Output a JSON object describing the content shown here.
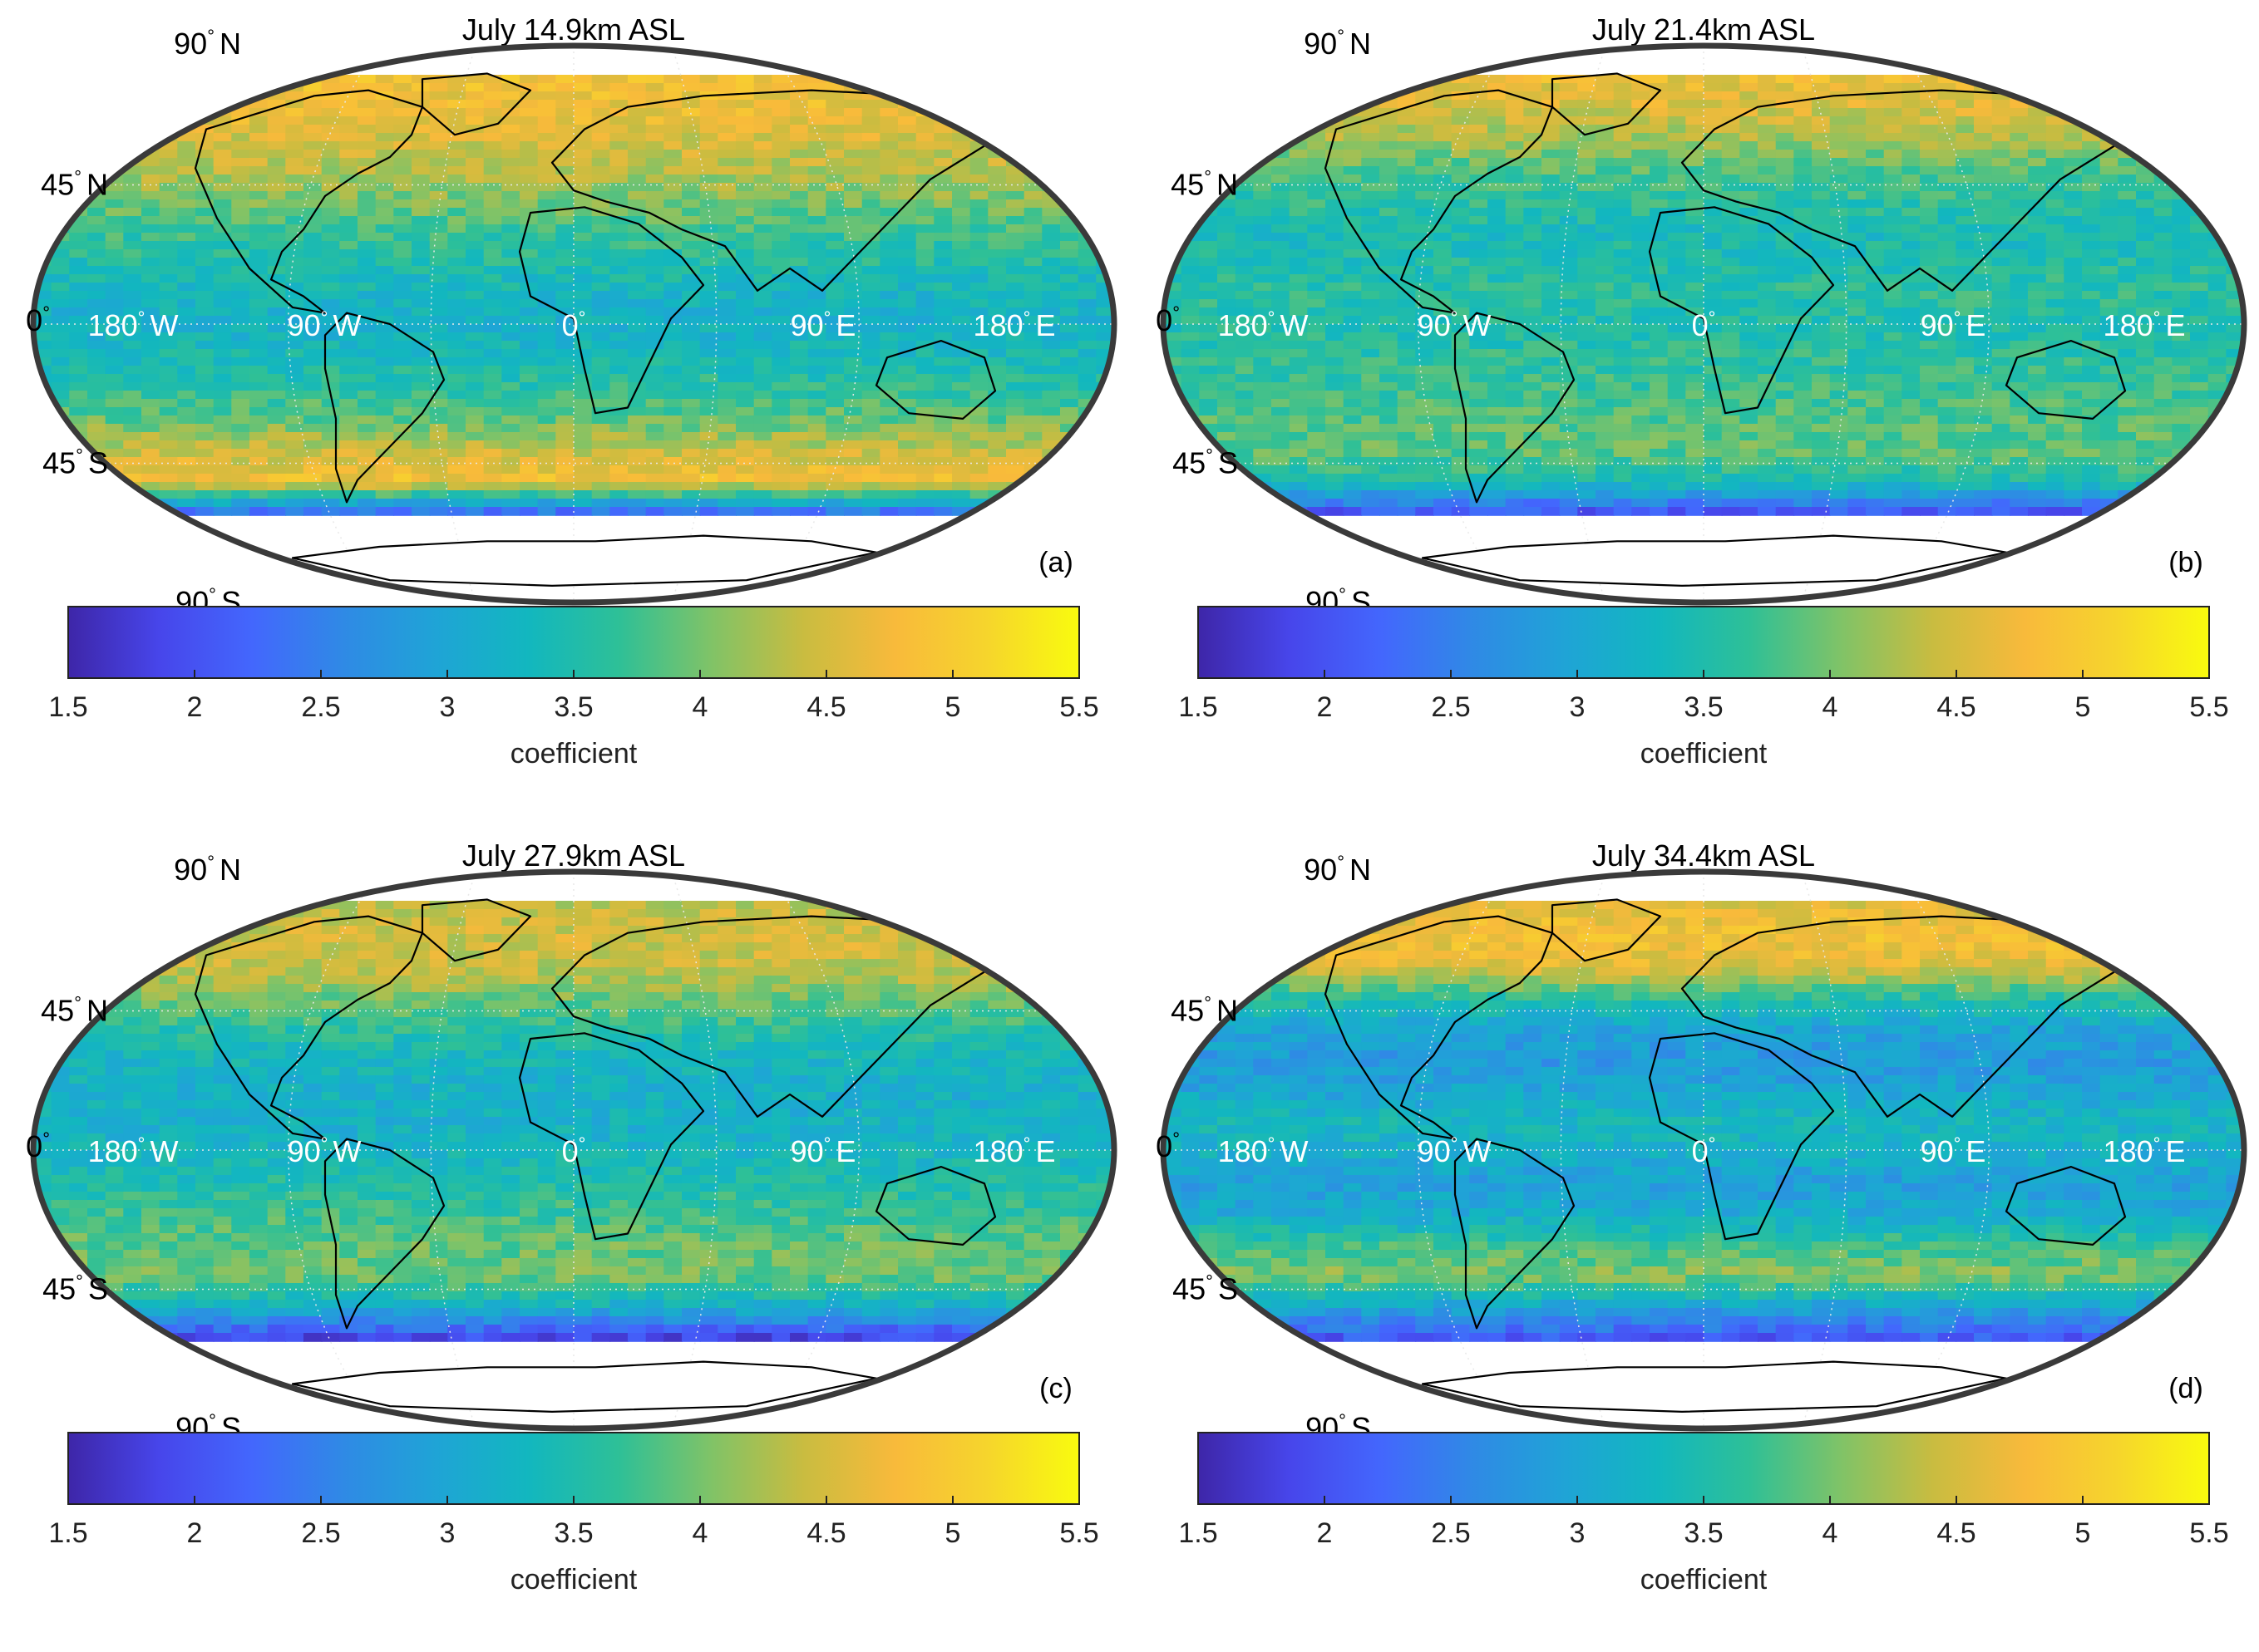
{
  "figure": {
    "colormap": [
      "#3e26a8",
      "#4746eb",
      "#4367fd",
      "#2f8ae5",
      "#1fa4d6",
      "#12b7bf",
      "#2ec097",
      "#80c367",
      "#c9bc40",
      "#f8ba3b",
      "#f6d52c",
      "#f9fb0e"
    ],
    "colorbar": {
      "min": 1.5,
      "max": 5.5,
      "ticks": [
        "1.5",
        "2",
        "2.5",
        "3",
        "3.5",
        "4",
        "4.5",
        "5",
        "5.5"
      ],
      "label": "coefficient"
    },
    "lat_labels": [
      {
        "deg": "90",
        "hem": "N"
      },
      {
        "deg": "45",
        "hem": "N"
      },
      {
        "deg": "0",
        "hem": ""
      },
      {
        "deg": "45",
        "hem": "S"
      },
      {
        "deg": "90",
        "hem": "S"
      }
    ],
    "lon_labels": [
      {
        "deg": "180",
        "hem": "W"
      },
      {
        "deg": "90",
        "hem": "W"
      },
      {
        "deg": "0",
        "hem": ""
      },
      {
        "deg": "90",
        "hem": "E"
      },
      {
        "deg": "180",
        "hem": "E"
      }
    ],
    "degree_symbol": "°"
  },
  "panels": [
    {
      "title": "July 14.9km ASL",
      "letter": "(a)",
      "mean_profile": [
        4.8,
        4.7,
        4.5,
        4.3,
        4.0,
        3.7,
        3.5,
        3.3,
        3.2,
        3.4,
        3.6,
        3.9,
        4.4,
        4.8,
        2.4
      ]
    },
    {
      "title": "July 21.4km ASL",
      "letter": "(b)",
      "mean_profile": [
        4.7,
        4.5,
        4.2,
        3.8,
        3.6,
        3.4,
        3.5,
        3.6,
        3.5,
        3.6,
        3.7,
        3.8,
        3.9,
        3.5,
        2.1
      ]
    },
    {
      "title": "July 27.9km ASL",
      "letter": "(c)",
      "mean_profile": [
        4.4,
        4.5,
        4.4,
        4.0,
        3.6,
        3.3,
        3.2,
        3.2,
        3.3,
        3.5,
        3.7,
        3.9,
        4.0,
        3.2,
        1.9
      ]
    },
    {
      "title": "July 34.4km ASL",
      "letter": "(d)",
      "mean_profile": [
        4.6,
        4.8,
        4.6,
        3.6,
        3.0,
        2.8,
        3.0,
        3.3,
        3.2,
        2.9,
        3.1,
        3.7,
        4.1,
        3.0,
        2.1
      ]
    }
  ]
}
